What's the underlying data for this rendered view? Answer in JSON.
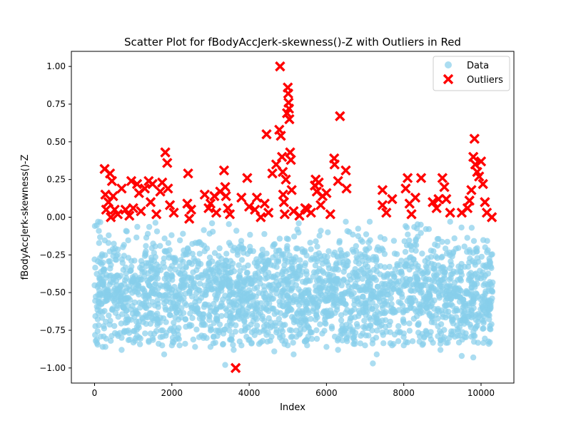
{
  "chart_data": {
    "type": "scatter",
    "title": "Scatter Plot for fBodyAccJerk-skewness()-Z with Outliers in Red",
    "xlabel": "Index",
    "ylabel": "fBodyAccJerk-skewness()-Z",
    "xlim": [
      -600,
      10850
    ],
    "ylim": [
      -1.1,
      1.1
    ],
    "x_ticks": [
      0,
      2000,
      4000,
      6000,
      8000,
      10000
    ],
    "x_tick_labels": [
      "0",
      "2000",
      "4000",
      "6000",
      "8000",
      "10000"
    ],
    "y_ticks": [
      -1.0,
      -0.75,
      -0.5,
      -0.25,
      0.0,
      0.25,
      0.5,
      0.75,
      1.0
    ],
    "y_tick_labels": [
      "−1.00",
      "−0.75",
      "−0.50",
      "−0.25",
      "0.00",
      "0.25",
      "0.50",
      "0.75",
      "1.00"
    ],
    "grid": false,
    "legend_position": "upper right",
    "series": [
      {
        "name": "Data",
        "marker": "circle",
        "color": "#87CEEB",
        "alpha": 0.7,
        "x_range": [
          0,
          10299
        ],
        "y_range": [
          -0.98,
          -0.03
        ],
        "approx_point_count": 10299,
        "points": [
          [
            0,
            -0.28
          ],
          [
            30,
            -0.82
          ],
          [
            90,
            -0.03
          ],
          [
            210,
            -0.86
          ],
          [
            280,
            -0.86
          ],
          [
            420,
            -0.82
          ],
          [
            700,
            -0.88
          ],
          [
            1050,
            -0.82
          ],
          [
            1400,
            -0.82
          ],
          [
            1750,
            -0.85
          ],
          [
            1800,
            -0.91
          ],
          [
            2000,
            -0.85
          ],
          [
            2200,
            -0.85
          ],
          [
            2600,
            -0.86
          ],
          [
            3000,
            -0.86
          ],
          [
            3380,
            -0.98
          ],
          [
            3600,
            -0.88
          ],
          [
            3800,
            -0.85
          ],
          [
            4300,
            -0.83
          ],
          [
            4650,
            -0.89
          ],
          [
            5000,
            -0.85
          ],
          [
            5150,
            -0.91
          ],
          [
            5500,
            -0.85
          ],
          [
            6000,
            -0.86
          ],
          [
            6300,
            -0.88
          ],
          [
            6700,
            -0.84
          ],
          [
            7000,
            -0.85
          ],
          [
            7200,
            -0.97
          ],
          [
            7300,
            -0.91
          ],
          [
            7700,
            -0.85
          ],
          [
            8000,
            -0.85
          ],
          [
            8500,
            -0.84
          ],
          [
            8950,
            -0.88
          ],
          [
            9500,
            -0.92
          ],
          [
            9800,
            -0.93
          ],
          [
            10200,
            -0.84
          ],
          [
            10270,
            -0.71
          ],
          [
            7120,
            -0.03
          ],
          [
            6500,
            -0.03
          ],
          [
            9200,
            -0.03
          ]
        ]
      },
      {
        "name": "Outliers",
        "marker": "X",
        "color": "#FF0000",
        "points": [
          [
            260,
            0.32
          ],
          [
            400,
            0.29
          ],
          [
            450,
            0.24
          ],
          [
            280,
            0.15
          ],
          [
            360,
            0.1
          ],
          [
            480,
            0.14
          ],
          [
            300,
            0.05
          ],
          [
            420,
            0.0
          ],
          [
            520,
            0.05
          ],
          [
            600,
            0.02
          ],
          [
            700,
            0.19
          ],
          [
            800,
            0.05
          ],
          [
            900,
            0.01
          ],
          [
            950,
            0.24
          ],
          [
            1000,
            0.06
          ],
          [
            1100,
            0.22
          ],
          [
            1150,
            0.16
          ],
          [
            1200,
            0.04
          ],
          [
            1300,
            0.19
          ],
          [
            1400,
            0.24
          ],
          [
            1450,
            0.1
          ],
          [
            1500,
            0.22
          ],
          [
            1600,
            0.02
          ],
          [
            1700,
            0.17
          ],
          [
            1750,
            0.23
          ],
          [
            1830,
            0.43
          ],
          [
            1880,
            0.36
          ],
          [
            1900,
            0.19
          ],
          [
            1950,
            0.08
          ],
          [
            2050,
            0.03
          ],
          [
            2420,
            0.29
          ],
          [
            2450,
            -0.01
          ],
          [
            2500,
            0.05
          ],
          [
            2400,
            0.09
          ],
          [
            2850,
            0.15
          ],
          [
            2950,
            0.06
          ],
          [
            3000,
            0.09
          ],
          [
            3100,
            0.14
          ],
          [
            3150,
            0.03
          ],
          [
            3250,
            0.17
          ],
          [
            3350,
            0.31
          ],
          [
            3380,
            0.2
          ],
          [
            3400,
            0.14
          ],
          [
            3450,
            0.06
          ],
          [
            3500,
            0.02
          ],
          [
            3650,
            -1.0
          ],
          [
            3800,
            0.13
          ],
          [
            3950,
            0.26
          ],
          [
            4000,
            0.07
          ],
          [
            4150,
            0.05
          ],
          [
            4200,
            0.13
          ],
          [
            4300,
            0.0
          ],
          [
            4400,
            0.09
          ],
          [
            4450,
            0.55
          ],
          [
            4500,
            0.03
          ],
          [
            4600,
            0.29
          ],
          [
            4700,
            0.35
          ],
          [
            4780,
            0.58
          ],
          [
            4800,
            1.0
          ],
          [
            4820,
            0.54
          ],
          [
            4850,
            0.4
          ],
          [
            4870,
            0.3
          ],
          [
            4880,
            0.15
          ],
          [
            4900,
            0.1
          ],
          [
            4920,
            0.02
          ],
          [
            4950,
            0.25
          ],
          [
            4980,
            0.69
          ],
          [
            5000,
            0.86
          ],
          [
            5010,
            0.82
          ],
          [
            5020,
            0.76
          ],
          [
            5030,
            0.72
          ],
          [
            5040,
            0.65
          ],
          [
            5060,
            0.43
          ],
          [
            5080,
            0.38
          ],
          [
            5100,
            0.18
          ],
          [
            5150,
            0.04
          ],
          [
            5300,
            0.01
          ],
          [
            5450,
            0.06
          ],
          [
            5500,
            0.05
          ],
          [
            5600,
            0.03
          ],
          [
            5700,
            0.21
          ],
          [
            5720,
            0.25
          ],
          [
            5750,
            0.17
          ],
          [
            5800,
            0.23
          ],
          [
            5850,
            0.08
          ],
          [
            5900,
            0.14
          ],
          [
            6000,
            0.16
          ],
          [
            6100,
            0.02
          ],
          [
            6200,
            0.39
          ],
          [
            6210,
            0.35
          ],
          [
            6300,
            0.24
          ],
          [
            6350,
            0.67
          ],
          [
            6500,
            0.31
          ],
          [
            6520,
            0.19
          ],
          [
            7450,
            0.18
          ],
          [
            7450,
            0.08
          ],
          [
            7550,
            0.03
          ],
          [
            7700,
            0.12
          ],
          [
            8050,
            0.19
          ],
          [
            8100,
            0.26
          ],
          [
            8150,
            0.09
          ],
          [
            8200,
            0.02
          ],
          [
            8300,
            0.13
          ],
          [
            8450,
            0.26
          ],
          [
            8750,
            0.1
          ],
          [
            8850,
            0.06
          ],
          [
            8900,
            0.12
          ],
          [
            9000,
            0.26
          ],
          [
            9050,
            0.2
          ],
          [
            9100,
            0.12
          ],
          [
            9200,
            0.03
          ],
          [
            9500,
            0.03
          ],
          [
            9650,
            0.06
          ],
          [
            9700,
            0.11
          ],
          [
            9750,
            0.18
          ],
          [
            9800,
            0.4
          ],
          [
            9830,
            0.52
          ],
          [
            9850,
            0.35
          ],
          [
            9900,
            0.3
          ],
          [
            9950,
            0.27
          ],
          [
            10000,
            0.37
          ],
          [
            10050,
            0.22
          ],
          [
            10100,
            0.1
          ],
          [
            10150,
            0.03
          ],
          [
            10280,
            0.0
          ]
        ]
      }
    ]
  }
}
